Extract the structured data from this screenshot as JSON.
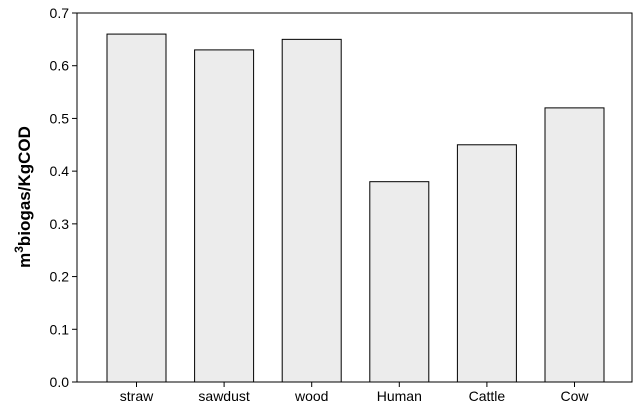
{
  "chart_data": {
    "type": "bar",
    "ylabel": [
      "m",
      "3",
      "biogas/KgCOD"
    ],
    "categories": [
      "straw",
      "sawdust",
      "wood",
      "Human",
      "Cattle",
      "Cow"
    ],
    "values": [
      0.66,
      0.63,
      0.65,
      0.38,
      0.45,
      0.52
    ],
    "color": "#ececec",
    "ylim": [
      0,
      0.7
    ],
    "yticks": [
      {
        "value": 0,
        "label": "0.0"
      },
      0.1,
      0.2,
      0.3,
      0.4,
      0.5,
      0.6,
      0.7
    ]
  }
}
